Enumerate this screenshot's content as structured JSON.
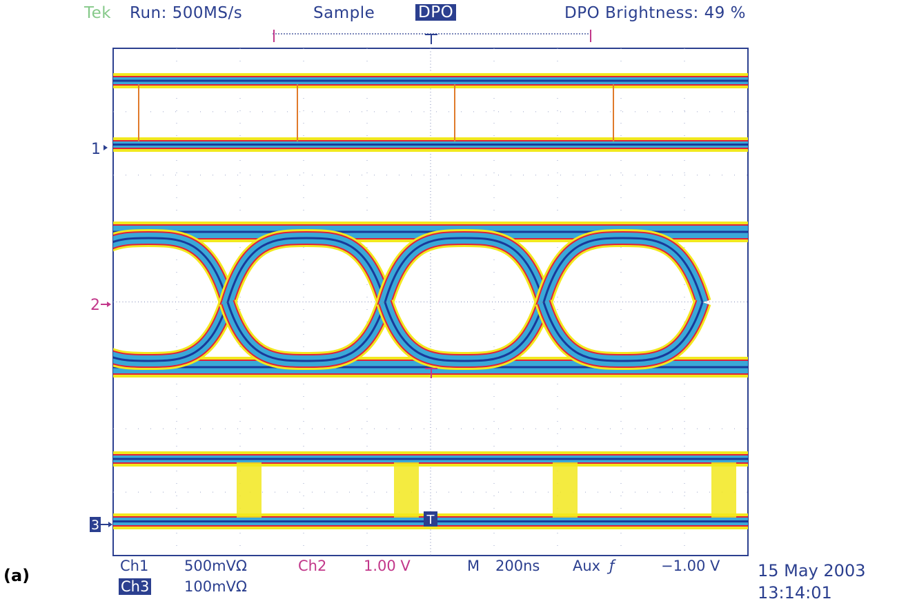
{
  "header": {
    "brand": "Tek",
    "run": "Run: 500MS/s",
    "acq_mode": "Sample",
    "display_mode": "DPO",
    "brightness": "DPO Brightness: 49 %"
  },
  "markers": {
    "ch1": "1",
    "ch2": "2",
    "ch3": "3",
    "trigger": "T"
  },
  "footer": {
    "ch1_label": "Ch1",
    "ch1_scale": "500mVΩ",
    "ch2_label": "Ch2",
    "ch2_scale": "1.00 V",
    "timebase_label": "M",
    "timebase": "200ns",
    "trigger_source": "Aux",
    "trigger_level": "−1.00 V",
    "ch3_label": "Ch3",
    "ch3_scale": "100mVΩ",
    "date": "15 May 2003",
    "time": "13:14:01"
  },
  "figure_label": "(a)",
  "colors": {
    "text": "#2b3f8f",
    "brand": "#86c98a",
    "ch2_text": "#c2378a",
    "trace_dark": "#1a3a9a",
    "trace_mid": "#3aa8d8",
    "trace_edge_red": "#e0203a",
    "trace_edge_yellow": "#f2e81e"
  }
}
